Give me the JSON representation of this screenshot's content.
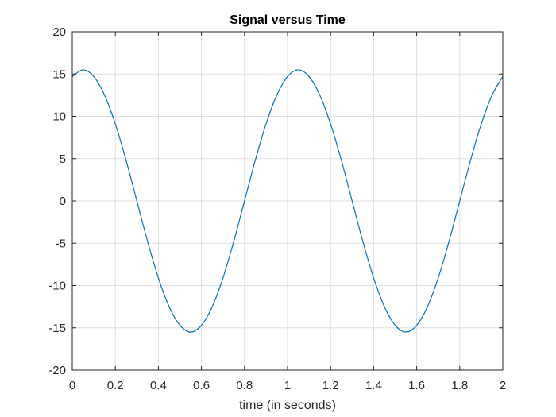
{
  "chart_data": {
    "type": "line",
    "title": "Signal versus Time",
    "xlabel": "time (in seconds)",
    "ylabel": "",
    "xlim": [
      0,
      2
    ],
    "ylim": [
      -20,
      20
    ],
    "xticks": [
      0,
      0.2,
      0.4,
      0.6,
      0.8,
      1,
      1.2,
      1.4,
      1.6,
      1.8,
      2
    ],
    "yticks": [
      -20,
      -15,
      -10,
      -5,
      0,
      5,
      10,
      15,
      20
    ],
    "grid": true,
    "legend": "none",
    "series": [
      {
        "color": "#0072bd",
        "x": [
          0,
          0.05,
          0.1,
          0.15,
          0.2,
          0.25,
          0.3,
          0.35,
          0.4,
          0.45,
          0.5,
          0.55,
          0.6,
          0.65,
          0.7,
          0.75,
          0.8,
          0.85,
          0.9,
          0.95,
          1,
          1.05,
          1.1,
          1.15,
          1.2,
          1.25,
          1.3,
          1.35,
          1.4,
          1.45,
          1.5,
          1.55,
          1.6,
          1.65,
          1.7,
          1.75,
          1.8,
          1.85,
          1.9,
          1.95,
          2
        ],
        "y": [
          14.7,
          15.5,
          14.7,
          12.5,
          9.1,
          4.8,
          0,
          -4.8,
          -9.1,
          -12.5,
          -14.7,
          -15.5,
          -14.7,
          -12.5,
          -9.1,
          -4.8,
          0,
          4.8,
          9.1,
          12.5,
          14.7,
          15.5,
          14.7,
          12.5,
          9.1,
          4.8,
          0,
          -4.8,
          -9.1,
          -12.5,
          -14.7,
          -15.5,
          -14.7,
          -12.5,
          -9.1,
          -4.8,
          0,
          4.8,
          9.1,
          12.5,
          14.7
        ]
      }
    ]
  }
}
